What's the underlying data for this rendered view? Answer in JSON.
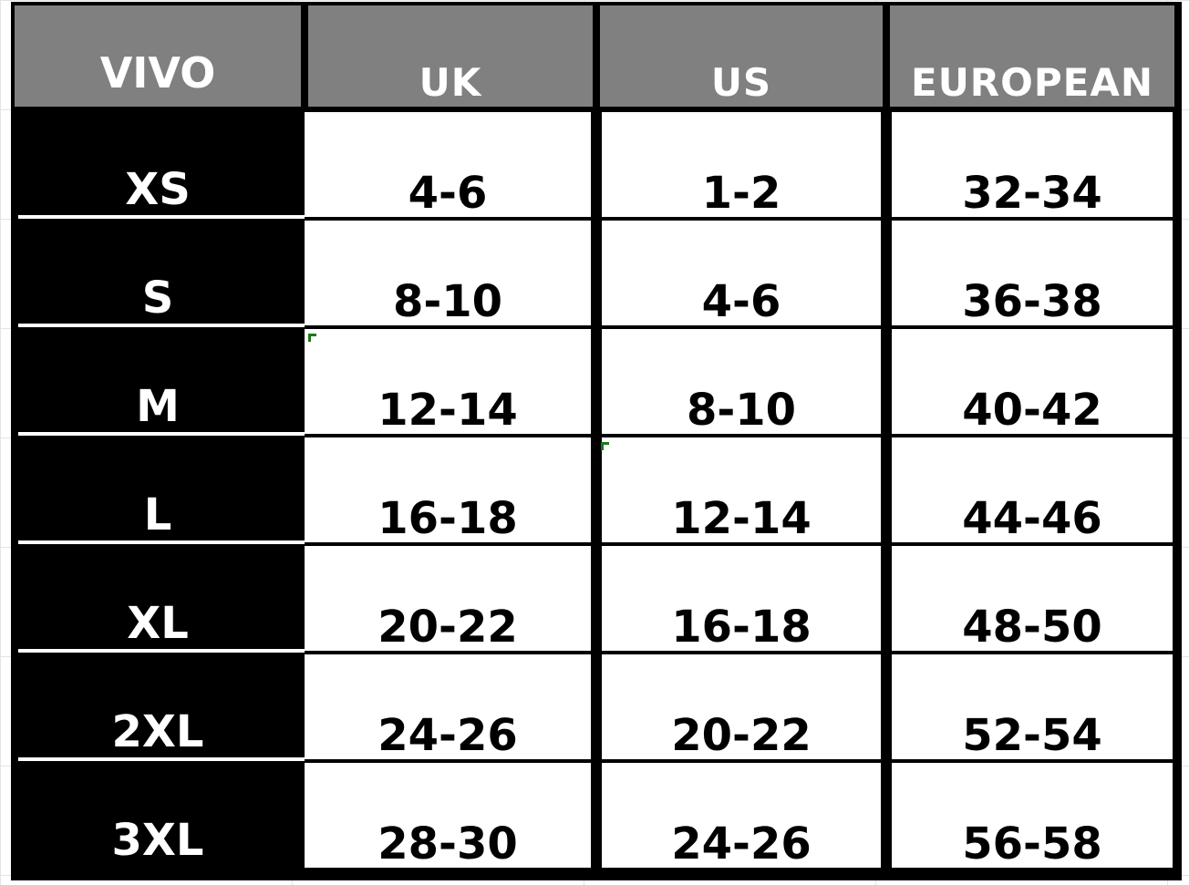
{
  "table": {
    "headers": [
      "VIVO",
      "UK",
      "US",
      "EUROPEAN"
    ],
    "rows": [
      {
        "size": "XS",
        "uk": "4-6",
        "us": "1-2",
        "eu": "32-34"
      },
      {
        "size": "S",
        "uk": "8-10",
        "us": "4-6",
        "eu": "36-38"
      },
      {
        "size": "M",
        "uk": "12-14",
        "us": "8-10",
        "eu": "40-42"
      },
      {
        "size": "L",
        "uk": "16-18",
        "us": "12-14",
        "eu": "44-46"
      },
      {
        "size": "XL",
        "uk": "20-22",
        "us": "16-18",
        "eu": "48-50"
      },
      {
        "size": "2XL",
        "uk": "24-26",
        "us": "20-22",
        "eu": "52-54"
      },
      {
        "size": "3XL",
        "uk": "28-30",
        "us": "24-26",
        "eu": "56-58"
      }
    ]
  },
  "colors": {
    "header_bg": "#808080",
    "size_column_bg": "#000000",
    "cell_bg": "#ffffff",
    "grid_line": "#000000"
  }
}
